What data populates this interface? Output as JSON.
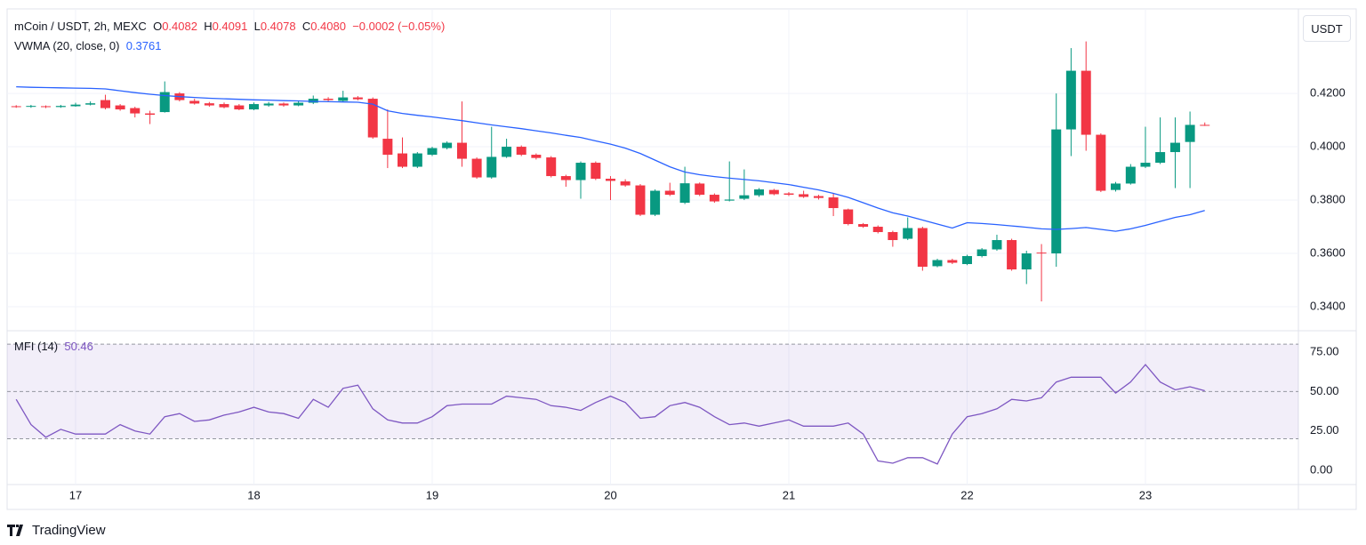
{
  "header": {
    "symbol": "mCoin / USDT, 2h, MEXC",
    "ohlc": [
      {
        "key": "O",
        "value": "0.4082"
      },
      {
        "key": "H",
        "value": "0.4091"
      },
      {
        "key": "L",
        "value": "0.4078"
      },
      {
        "key": "C",
        "value": "0.4080"
      }
    ],
    "change": "−0.0002 (−0.05%)"
  },
  "currency_button": "USDT",
  "logo": "TradingView",
  "chart_data": [
    {
      "type": "candlestick",
      "up_color": "#089981",
      "down_color": "#f23645",
      "grid": true,
      "x": [
        16.667,
        16.75,
        16.833,
        16.917,
        17,
        17.083,
        17.167,
        17.25,
        17.333,
        17.417,
        17.5,
        17.583,
        17.667,
        17.75,
        17.833,
        17.917,
        18,
        18.083,
        18.167,
        18.25,
        18.333,
        18.417,
        18.5,
        18.583,
        18.667,
        18.75,
        18.833,
        18.917,
        19,
        19.083,
        19.167,
        19.25,
        19.333,
        19.417,
        19.5,
        19.583,
        19.667,
        19.75,
        19.833,
        19.917,
        20,
        20.083,
        20.167,
        20.25,
        20.333,
        20.417,
        20.5,
        20.583,
        20.667,
        20.75,
        20.833,
        20.917,
        21,
        21.083,
        21.167,
        21.25,
        21.333,
        21.417,
        21.5,
        21.583,
        21.667,
        21.75,
        21.833,
        21.917,
        22,
        22.083,
        22.167,
        22.25,
        22.333,
        22.417,
        22.5,
        22.583,
        22.667,
        22.75,
        22.833,
        22.917,
        23,
        23.083,
        23.167,
        23.25,
        23.333
      ],
      "open": [
        0.4152,
        0.415,
        0.4152,
        0.4149,
        0.4152,
        0.4158,
        0.4175,
        0.4155,
        0.4145,
        0.4125,
        0.413,
        0.42,
        0.4172,
        0.4163,
        0.416,
        0.4155,
        0.414,
        0.4155,
        0.4162,
        0.4155,
        0.4165,
        0.418,
        0.4172,
        0.4185,
        0.418,
        0.403,
        0.3975,
        0.3925,
        0.397,
        0.3995,
        0.4015,
        0.3955,
        0.3885,
        0.3962,
        0.4,
        0.397,
        0.396,
        0.389,
        0.3875,
        0.394,
        0.388,
        0.387,
        0.3855,
        0.3745,
        0.3835,
        0.379,
        0.3862,
        0.382,
        0.3798,
        0.3805,
        0.3818,
        0.3838,
        0.3825,
        0.3822,
        0.3815,
        0.381,
        0.3765,
        0.371,
        0.37,
        0.368,
        0.3655,
        0.3695,
        0.3552,
        0.3575,
        0.356,
        0.359,
        0.3615,
        0.365,
        0.354,
        0.3603,
        0.36,
        0.4065,
        0.4285,
        0.4045,
        0.3838,
        0.3862,
        0.3925,
        0.394,
        0.398,
        0.4018,
        0.4082
      ],
      "close": [
        0.415,
        0.4153,
        0.4149,
        0.4153,
        0.4158,
        0.4163,
        0.4145,
        0.414,
        0.4125,
        0.412,
        0.4205,
        0.4175,
        0.4162,
        0.4155,
        0.4148,
        0.414,
        0.416,
        0.4162,
        0.4155,
        0.4165,
        0.418,
        0.4175,
        0.4185,
        0.4178,
        0.4035,
        0.397,
        0.3925,
        0.3975,
        0.3995,
        0.4015,
        0.3955,
        0.3885,
        0.3962,
        0.4,
        0.397,
        0.3958,
        0.389,
        0.3875,
        0.394,
        0.388,
        0.3872,
        0.3855,
        0.3745,
        0.3835,
        0.382,
        0.3863,
        0.382,
        0.3795,
        0.3802,
        0.3818,
        0.384,
        0.3822,
        0.382,
        0.3812,
        0.3808,
        0.377,
        0.371,
        0.37,
        0.368,
        0.365,
        0.3695,
        0.355,
        0.3575,
        0.3565,
        0.359,
        0.3615,
        0.365,
        0.354,
        0.36,
        0.3601,
        0.4065,
        0.4285,
        0.4045,
        0.3835,
        0.3862,
        0.3925,
        0.394,
        0.398,
        0.4015,
        0.4082,
        0.408
      ],
      "high": [
        0.4156,
        0.4157,
        0.4155,
        0.4157,
        0.4165,
        0.417,
        0.4195,
        0.416,
        0.415,
        0.4135,
        0.4245,
        0.4205,
        0.418,
        0.4168,
        0.4166,
        0.416,
        0.4166,
        0.4168,
        0.4166,
        0.4172,
        0.4192,
        0.4186,
        0.421,
        0.419,
        0.4185,
        0.414,
        0.4035,
        0.398,
        0.4,
        0.402,
        0.417,
        0.396,
        0.4075,
        0.403,
        0.4005,
        0.3975,
        0.3965,
        0.3895,
        0.3945,
        0.3945,
        0.389,
        0.3878,
        0.386,
        0.384,
        0.3865,
        0.3925,
        0.3866,
        0.3825,
        0.3945,
        0.3915,
        0.3845,
        0.3842,
        0.383,
        0.3835,
        0.382,
        0.3825,
        0.3768,
        0.3714,
        0.3705,
        0.3685,
        0.3735,
        0.37,
        0.358,
        0.358,
        0.3595,
        0.362,
        0.367,
        0.3655,
        0.361,
        0.3635,
        0.42,
        0.437,
        0.4395,
        0.405,
        0.3868,
        0.3935,
        0.4075,
        0.411,
        0.411,
        0.4132,
        0.4091
      ],
      "low": [
        0.4146,
        0.4146,
        0.4145,
        0.4146,
        0.415,
        0.4155,
        0.414,
        0.4135,
        0.411,
        0.4085,
        0.4128,
        0.417,
        0.4158,
        0.415,
        0.4144,
        0.4137,
        0.4137,
        0.415,
        0.415,
        0.4152,
        0.416,
        0.417,
        0.4168,
        0.4174,
        0.403,
        0.392,
        0.392,
        0.392,
        0.3965,
        0.399,
        0.3925,
        0.388,
        0.388,
        0.3958,
        0.3965,
        0.3952,
        0.3885,
        0.385,
        0.3805,
        0.3875,
        0.38,
        0.385,
        0.374,
        0.374,
        0.3815,
        0.3785,
        0.3815,
        0.379,
        0.3795,
        0.38,
        0.3812,
        0.3818,
        0.3815,
        0.3808,
        0.3802,
        0.374,
        0.3705,
        0.3696,
        0.3675,
        0.3625,
        0.365,
        0.3535,
        0.3548,
        0.356,
        0.3556,
        0.3585,
        0.361,
        0.3535,
        0.3485,
        0.342,
        0.355,
        0.3965,
        0.3985,
        0.383,
        0.3832,
        0.3858,
        0.392,
        0.3935,
        0.3845,
        0.3845,
        0.4078
      ],
      "overlay": {
        "name": "VWMA (20, close, 0)",
        "value_label": "0.3761",
        "color": "#2962ff",
        "values": [
          0.4225,
          0.4223,
          0.4222,
          0.4221,
          0.422,
          0.4219,
          0.4217,
          0.421,
          0.4203,
          0.4197,
          0.4192,
          0.4188,
          0.4185,
          0.4182,
          0.418,
          0.4178,
          0.4176,
          0.4175,
          0.4173,
          0.4172,
          0.417,
          0.4169,
          0.4168,
          0.4167,
          0.416,
          0.4135,
          0.4125,
          0.4118,
          0.4112,
          0.4105,
          0.4098,
          0.409,
          0.4082,
          0.4075,
          0.4068,
          0.406,
          0.4052,
          0.4043,
          0.4035,
          0.4022,
          0.401,
          0.3995,
          0.3975,
          0.395,
          0.3925,
          0.3905,
          0.3895,
          0.3888,
          0.3882,
          0.3877,
          0.3872,
          0.3865,
          0.3858,
          0.3848,
          0.3838,
          0.3825,
          0.381,
          0.379,
          0.377,
          0.3752,
          0.374,
          0.3725,
          0.371,
          0.3695,
          0.3715,
          0.3712,
          0.3708,
          0.3703,
          0.3698,
          0.3692,
          0.369,
          0.3693,
          0.3697,
          0.369,
          0.3683,
          0.3692,
          0.3705,
          0.372,
          0.3735,
          0.3745,
          0.3761
        ]
      },
      "ylim": [
        0.331,
        0.4517
      ],
      "yticks": [
        {
          "value": 0.34,
          "label": "0.3400"
        },
        {
          "value": 0.36,
          "label": "0.3600"
        },
        {
          "value": 0.38,
          "label": "0.3800"
        },
        {
          "value": 0.4,
          "label": "0.4000"
        },
        {
          "value": 0.42,
          "label": "0.4200"
        }
      ],
      "xlim": [
        16.616,
        23.858
      ],
      "xticks": [
        17,
        18,
        19,
        20,
        21,
        22,
        23
      ]
    },
    {
      "type": "line",
      "name": "MFI (14)",
      "value_label": "50.46",
      "color": "#7e57c2",
      "band": [
        20,
        80
      ],
      "levels": [
        20,
        50,
        80
      ],
      "values": [
        45,
        29,
        21,
        26,
        23,
        23,
        23,
        29,
        25,
        23,
        34,
        36,
        31,
        32,
        35,
        37,
        40,
        37,
        36,
        33,
        45,
        40,
        52,
        54,
        39,
        32,
        30,
        30,
        34,
        41,
        42,
        42,
        42,
        47,
        46,
        45,
        41,
        40,
        38,
        43,
        47,
        43,
        33,
        34,
        41,
        43,
        40,
        34,
        29,
        30,
        28,
        30,
        32,
        28,
        28,
        28,
        30,
        23,
        6,
        4.5,
        8,
        8,
        4,
        23,
        34,
        36,
        39,
        45,
        44,
        46,
        56,
        59,
        59,
        59,
        49,
        56,
        67,
        56,
        51,
        53,
        50.46
      ],
      "ylim": [
        -9,
        88.5
      ],
      "yticks": [
        {
          "value": 0,
          "label": "0.00"
        },
        {
          "value": 25,
          "label": "25.00"
        },
        {
          "value": 50,
          "label": "50.00"
        },
        {
          "value": 75,
          "label": "75.00"
        }
      ]
    }
  ]
}
